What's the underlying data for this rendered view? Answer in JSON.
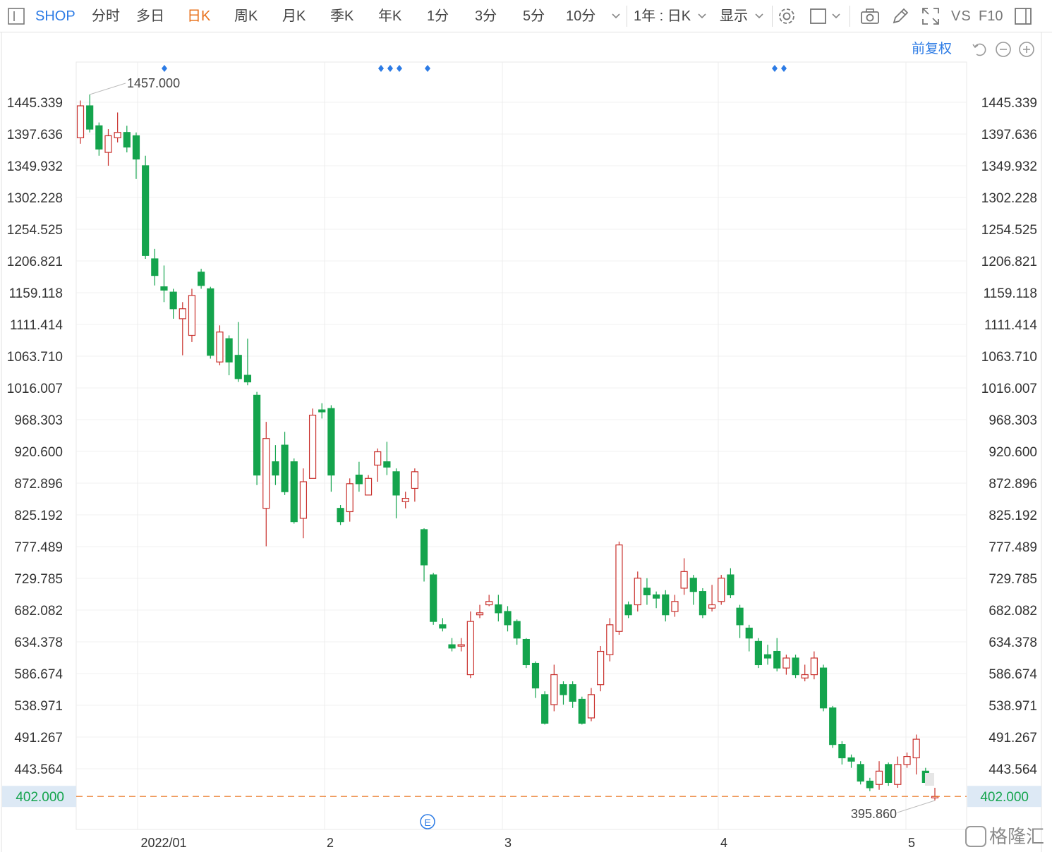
{
  "toolbar": {
    "symbol": "SHOP",
    "periods": [
      "分时",
      "多日",
      "日K",
      "周K",
      "月K",
      "季K",
      "年K",
      "1分",
      "3分",
      "5分",
      "10分"
    ],
    "active_period": "日K",
    "range_select": "1年 : 日K",
    "display_label": "显示",
    "vs_label": "VS",
    "f10_label": "F10"
  },
  "price_mode": "前复权",
  "colors": {
    "up": "#c9302c",
    "down": "#14a44d",
    "current_price": "#e8701a",
    "accent": "#2c7be5",
    "current_price_box": "#dde9f5"
  },
  "chart_data": {
    "type": "candlestick",
    "title": "",
    "ylim": [
      370,
      1475
    ],
    "y_ticks": [
      "1445.339",
      "1397.636",
      "1349.932",
      "1302.228",
      "1254.525",
      "1206.821",
      "1159.118",
      "1111.414",
      "1063.710",
      "1016.007",
      "968.303",
      "920.600",
      "872.896",
      "825.192",
      "777.489",
      "729.785",
      "682.082",
      "634.378",
      "586.674",
      "538.971",
      "491.267",
      "443.564"
    ],
    "x_ticks": [
      "2022/01",
      "2",
      "3",
      "4",
      "5"
    ],
    "high_label": "1457.000",
    "low_label": "395.860",
    "current_price": "402.000",
    "high_value": 1457,
    "low_value": 395.86,
    "current_value": 402,
    "ex_dividend_markers": 7,
    "event_marker": "E",
    "candles": [
      [
        1392,
        1440,
        1448,
        1383
      ],
      [
        1440,
        1405,
        1457,
        1400
      ],
      [
        1410,
        1375,
        1415,
        1365
      ],
      [
        1370,
        1395,
        1405,
        1350
      ],
      [
        1392,
        1400,
        1430,
        1385
      ],
      [
        1400,
        1378,
        1410,
        1370
      ],
      [
        1395,
        1360,
        1400,
        1330
      ],
      [
        1350,
        1215,
        1365,
        1210
      ],
      [
        1210,
        1185,
        1225,
        1170
      ],
      [
        1168,
        1163,
        1200,
        1145
      ],
      [
        1160,
        1135,
        1165,
        1120
      ],
      [
        1120,
        1135,
        1145,
        1065
      ],
      [
        1095,
        1155,
        1165,
        1085
      ],
      [
        1190,
        1170,
        1195,
        1165
      ],
      [
        1165,
        1065,
        1168,
        1060
      ],
      [
        1055,
        1100,
        1110,
        1050
      ],
      [
        1090,
        1055,
        1095,
        1035
      ],
      [
        1065,
        1030,
        1115,
        1025
      ],
      [
        1035,
        1025,
        1090,
        1020
      ],
      [
        1005,
        885,
        1010,
        870
      ],
      [
        835,
        940,
        965,
        778
      ],
      [
        905,
        885,
        930,
        870
      ],
      [
        930,
        860,
        950,
        855
      ],
      [
        905,
        815,
        910,
        812
      ],
      [
        820,
        875,
        895,
        790
      ],
      [
        880,
        975,
        985,
        880
      ],
      [
        983,
        980,
        993,
        970
      ],
      [
        985,
        885,
        990,
        860
      ],
      [
        835,
        815,
        840,
        810
      ],
      [
        830,
        872,
        880,
        815
      ],
      [
        885,
        872,
        905,
        860
      ],
      [
        855,
        880,
        885,
        855
      ],
      [
        900,
        920,
        925,
        875
      ],
      [
        905,
        897,
        935,
        885
      ],
      [
        890,
        855,
        895,
        820
      ],
      [
        845,
        850,
        860,
        835
      ],
      [
        865,
        890,
        895,
        845
      ],
      [
        803,
        750,
        805,
        725
      ],
      [
        735,
        665,
        738,
        660
      ],
      [
        660,
        655,
        670,
        650
      ],
      [
        630,
        625,
        640,
        620
      ],
      [
        630,
        630,
        640,
        620
      ],
      [
        585,
        665,
        680,
        580
      ],
      [
        675,
        678,
        690,
        670
      ],
      [
        690,
        695,
        705,
        688
      ],
      [
        690,
        678,
        705,
        665
      ],
      [
        680,
        660,
        688,
        650
      ],
      [
        665,
        640,
        668,
        630
      ],
      [
        638,
        600,
        640,
        595
      ],
      [
        602,
        565,
        605,
        550
      ],
      [
        555,
        512,
        560,
        510
      ],
      [
        540,
        585,
        600,
        530
      ],
      [
        570,
        555,
        575,
        540
      ],
      [
        570,
        545,
        575,
        535
      ],
      [
        548,
        512,
        552,
        510
      ],
      [
        520,
        555,
        565,
        515
      ],
      [
        570,
        620,
        628,
        560
      ],
      [
        615,
        660,
        670,
        605
      ],
      [
        650,
        780,
        785,
        645
      ],
      [
        690,
        675,
        695,
        670
      ],
      [
        690,
        730,
        740,
        680
      ],
      [
        715,
        705,
        730,
        690
      ],
      [
        705,
        700,
        710,
        685
      ],
      [
        705,
        675,
        712,
        665
      ],
      [
        680,
        695,
        705,
        672
      ],
      [
        715,
        740,
        760,
        705
      ],
      [
        730,
        710,
        735,
        690
      ],
      [
        710,
        675,
        715,
        670
      ],
      [
        685,
        690,
        720,
        680
      ],
      [
        695,
        730,
        735,
        690
      ],
      [
        735,
        705,
        745,
        700
      ],
      [
        685,
        660,
        690,
        640
      ],
      [
        655,
        640,
        660,
        620
      ],
      [
        635,
        600,
        640,
        595
      ],
      [
        615,
        610,
        630,
        600
      ],
      [
        620,
        595,
        640,
        590
      ],
      [
        595,
        610,
        615,
        585
      ],
      [
        610,
        585,
        615,
        580
      ],
      [
        580,
        585,
        600,
        575
      ],
      [
        585,
        610,
        620,
        578
      ],
      [
        595,
        535,
        600,
        530
      ],
      [
        535,
        480,
        538,
        475
      ],
      [
        480,
        460,
        485,
        450
      ],
      [
        460,
        455,
        465,
        445
      ],
      [
        450,
        425,
        455,
        420
      ],
      [
        425,
        415,
        430,
        410
      ],
      [
        420,
        440,
        455,
        412
      ],
      [
        450,
        423,
        453,
        418
      ],
      [
        420,
        450,
        462,
        415
      ],
      [
        450,
        462,
        468,
        445
      ],
      [
        460,
        488,
        495,
        435
      ],
      [
        440,
        423,
        445,
        420
      ],
      [
        402,
        402,
        415,
        396
      ]
    ]
  },
  "watermark": "格隆汇"
}
